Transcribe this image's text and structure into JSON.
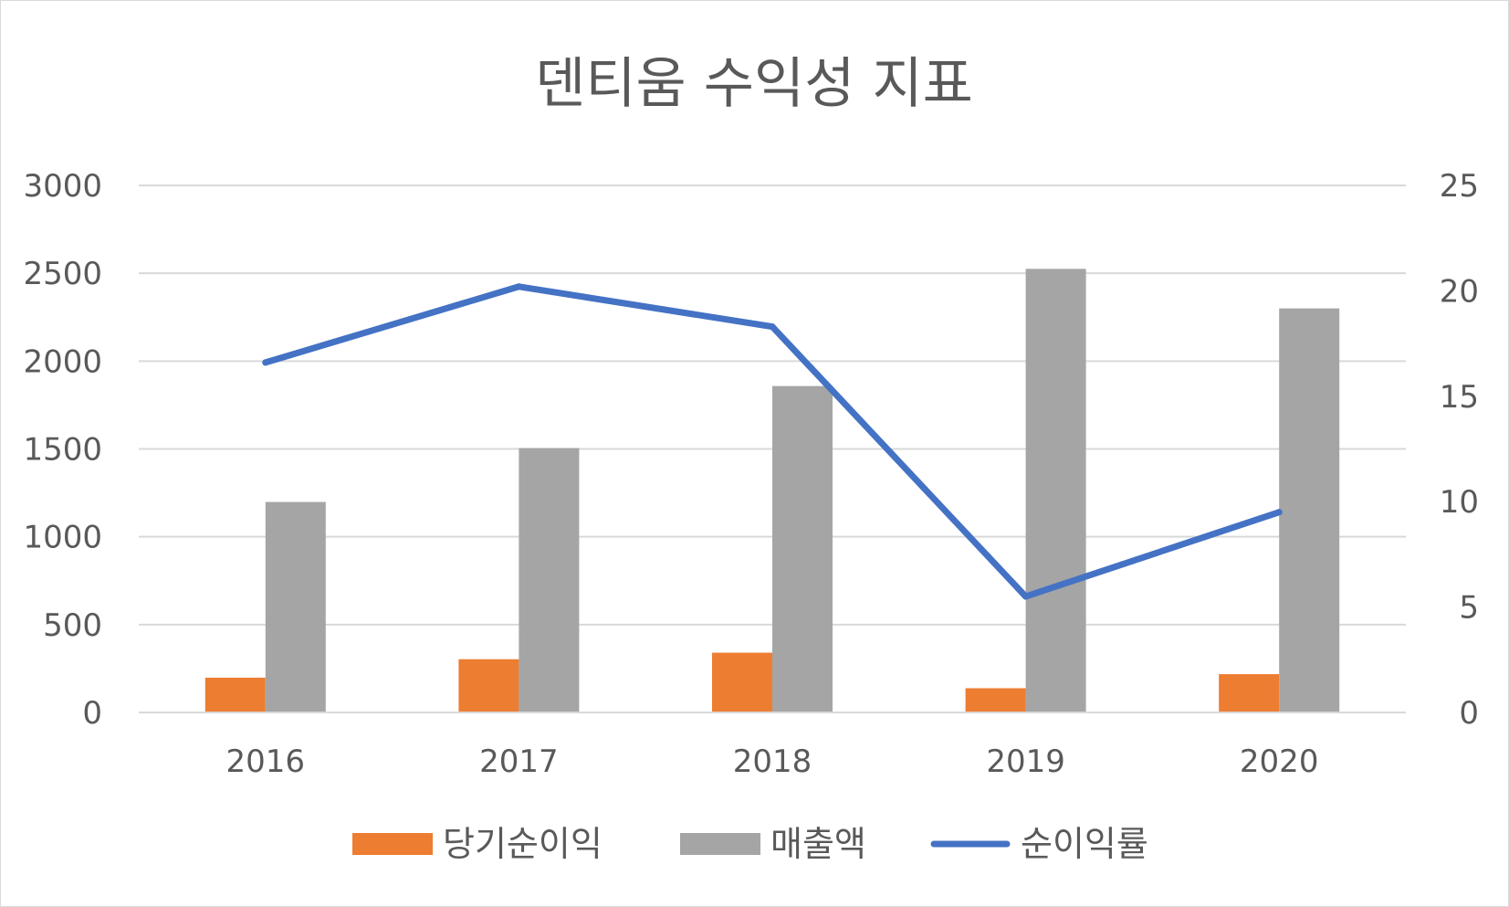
{
  "chart_data": {
    "type": "bar",
    "title": "덴티움 수익성 지표",
    "categories": [
      "2016",
      "2017",
      "2018",
      "2019",
      "2020"
    ],
    "series": [
      {
        "name": "당기순이익",
        "type": "bar",
        "axis": "left",
        "color": "#ed7d31",
        "values": [
          198,
          303,
          340,
          138,
          218
        ]
      },
      {
        "name": "매출액",
        "type": "bar",
        "axis": "left",
        "color": "#a5a5a5",
        "values": [
          1198,
          1505,
          1858,
          2525,
          2300
        ]
      },
      {
        "name": "순이익률",
        "type": "line",
        "axis": "right",
        "color": "#4472c4",
        "values": [
          16.6,
          20.2,
          18.3,
          5.5,
          9.5
        ]
      }
    ],
    "y_left": {
      "min": 0,
      "max": 3000,
      "ticks": [
        "0",
        "500",
        "1000",
        "1500",
        "2000",
        "2500",
        "3000"
      ]
    },
    "y_right": {
      "min": 0,
      "max": 25,
      "ticks": [
        "0",
        "5",
        "10",
        "15",
        "20",
        "25"
      ]
    },
    "grid": true,
    "legend_position": "bottom"
  }
}
